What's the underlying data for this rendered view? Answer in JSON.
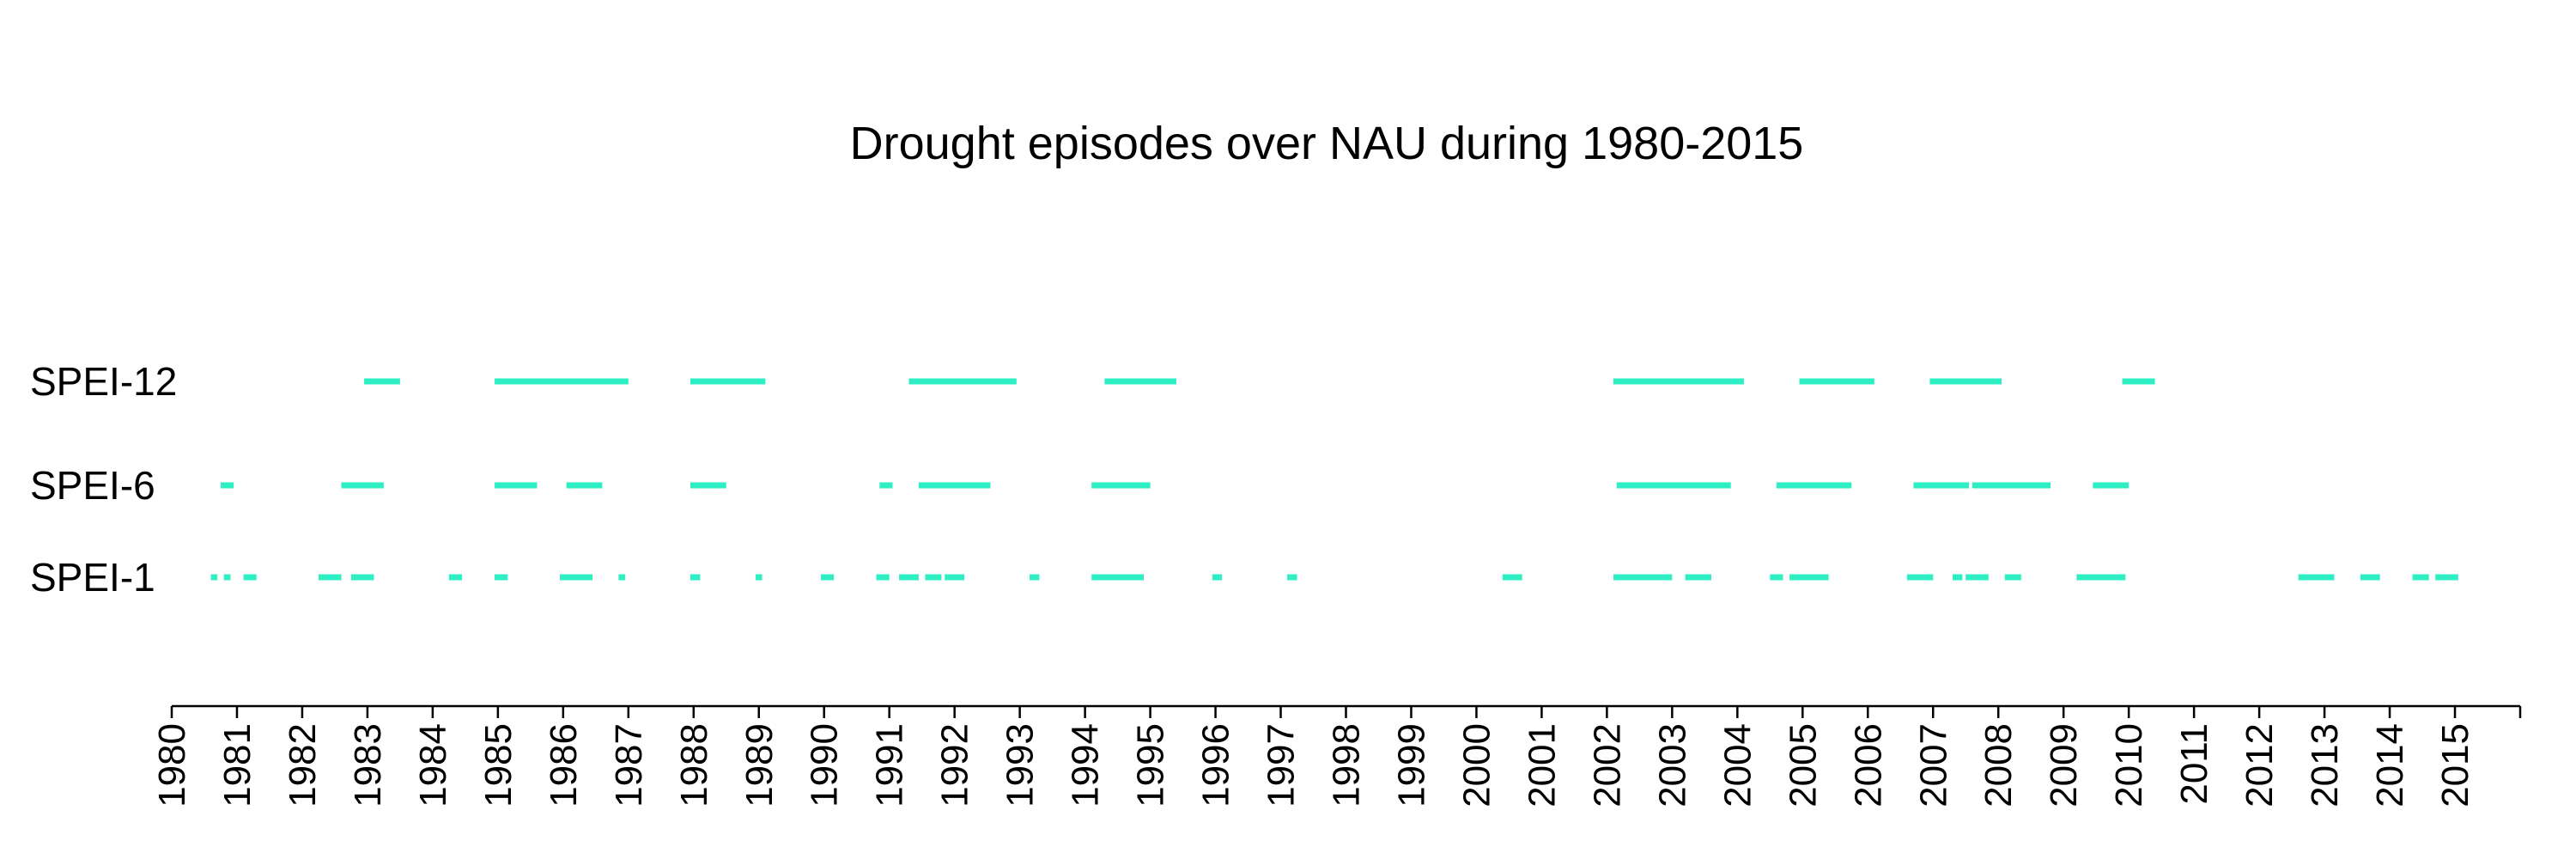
{
  "chart_data": {
    "type": "timeline",
    "title": "Drought episodes over NAU during 1980-2015",
    "xlim": [
      1980,
      2016
    ],
    "x_ticks": [
      "1980",
      "1981",
      "1982",
      "1983",
      "1984",
      "1985",
      "1986",
      "1987",
      "1988",
      "1989",
      "1990",
      "1991",
      "1992",
      "1993",
      "1994",
      "1995",
      "1996",
      "1997",
      "1998",
      "1999",
      "2000",
      "2001",
      "2002",
      "2003",
      "2004",
      "2005",
      "2006",
      "2007",
      "2008",
      "2009",
      "2010",
      "2011",
      "2012",
      "2013",
      "2014",
      "2015"
    ],
    "grid": false,
    "bar_color": "#2EEFC4",
    "series": [
      {
        "name": "SPEI-12",
        "episodes": [
          [
            1982.95,
            1983.5
          ],
          [
            1984.95,
            1987.0
          ],
          [
            1987.95,
            1989.1
          ],
          [
            1991.3,
            1992.95
          ],
          [
            1994.3,
            1995.4
          ],
          [
            2002.1,
            2004.1
          ],
          [
            2004.95,
            2006.1
          ],
          [
            2006.95,
            2008.05
          ],
          [
            2009.9,
            2010.4
          ]
        ]
      },
      {
        "name": "SPEI-6",
        "episodes": [
          [
            1980.75,
            1980.95
          ],
          [
            1982.6,
            1983.25
          ],
          [
            1984.95,
            1985.6
          ],
          [
            1986.05,
            1986.6
          ],
          [
            1987.95,
            1988.5
          ],
          [
            1990.85,
            1991.05
          ],
          [
            1991.45,
            1992.55
          ],
          [
            1994.1,
            1995.0
          ],
          [
            2002.15,
            2003.9
          ],
          [
            2004.6,
            2005.75
          ],
          [
            2006.7,
            2007.55
          ],
          [
            2007.6,
            2008.8
          ],
          [
            2009.45,
            2010.0
          ]
        ]
      },
      {
        "name": "SPEI-1",
        "episodes": [
          [
            1980.6,
            1980.7
          ],
          [
            1980.8,
            1980.9
          ],
          [
            1981.1,
            1981.3
          ],
          [
            1982.25,
            1982.6
          ],
          [
            1982.75,
            1983.1
          ],
          [
            1984.25,
            1984.45
          ],
          [
            1984.95,
            1985.15
          ],
          [
            1985.95,
            1986.45
          ],
          [
            1986.85,
            1986.95
          ],
          [
            1987.95,
            1988.1
          ],
          [
            1988.95,
            1989.05
          ],
          [
            1989.95,
            1990.15
          ],
          [
            1990.8,
            1991.0
          ],
          [
            1991.15,
            1991.45
          ],
          [
            1991.55,
            1991.8
          ],
          [
            1991.85,
            1992.15
          ],
          [
            1993.15,
            1993.3
          ],
          [
            1994.1,
            1994.9
          ],
          [
            1995.95,
            1996.1
          ],
          [
            1997.1,
            1997.25
          ],
          [
            2000.4,
            2000.7
          ],
          [
            2002.1,
            2003.0
          ],
          [
            2003.2,
            2003.6
          ],
          [
            2004.5,
            2004.7
          ],
          [
            2004.8,
            2005.4
          ],
          [
            2006.6,
            2007.0
          ],
          [
            2007.3,
            2007.45
          ],
          [
            2007.5,
            2007.85
          ],
          [
            2008.1,
            2008.35
          ],
          [
            2009.2,
            2009.95
          ],
          [
            2012.6,
            2013.15
          ],
          [
            2013.55,
            2013.85
          ],
          [
            2014.35,
            2014.6
          ],
          [
            2014.7,
            2015.05
          ]
        ]
      }
    ]
  }
}
